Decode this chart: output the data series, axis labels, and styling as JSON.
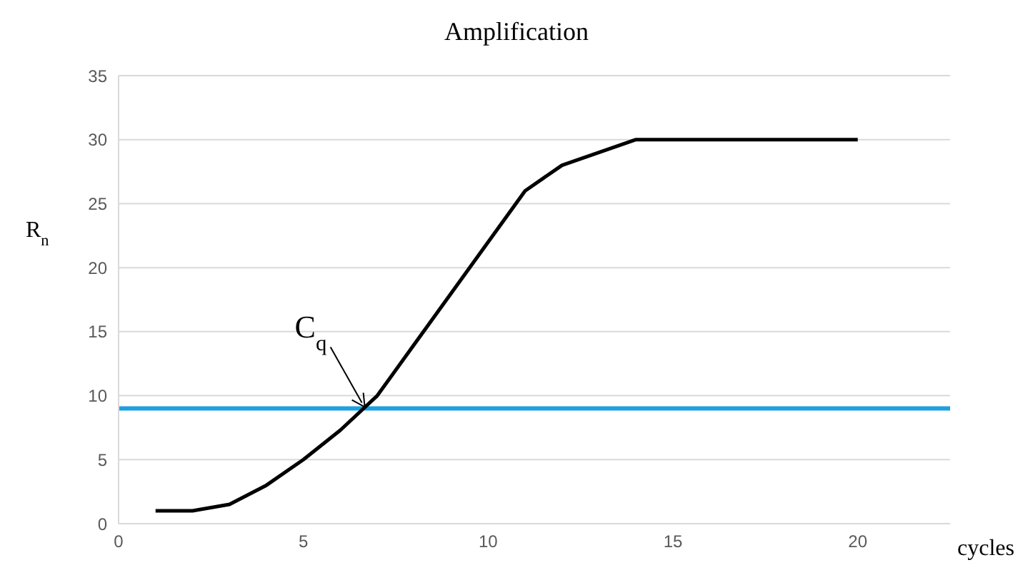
{
  "chart_data": {
    "type": "line",
    "title": "Amplification",
    "xlabel": "cycles",
    "ylabel": "R$_{n}$",
    "x": [
      1,
      2,
      3,
      4,
      5,
      6,
      7,
      8,
      9,
      10,
      11,
      12,
      13,
      14,
      15,
      16,
      17,
      18,
      19,
      20
    ],
    "series": [
      {
        "color": "#000000",
        "values": [
          1,
          1,
          1.5,
          3,
          5,
          7.3,
          10,
          14,
          18,
          22,
          26,
          28,
          29,
          30,
          30,
          30,
          30,
          30,
          30,
          30
        ]
      }
    ],
    "xlim": [
      0,
      22.5
    ],
    "xticks": [
      0,
      5,
      10,
      15,
      20
    ],
    "ylim": [
      0,
      35
    ],
    "yticks": [
      0,
      5,
      10,
      15,
      20,
      25,
      30,
      35
    ],
    "grid": "y",
    "marker": "none",
    "line_style": "solid",
    "ref_lines": [
      {
        "axis": "y",
        "value": 9,
        "color": "#1e9fe0"
      }
    ],
    "annotations": [
      {
        "text": "C$_{q}$",
        "x": 6.7,
        "y": 9
      }
    ]
  }
}
